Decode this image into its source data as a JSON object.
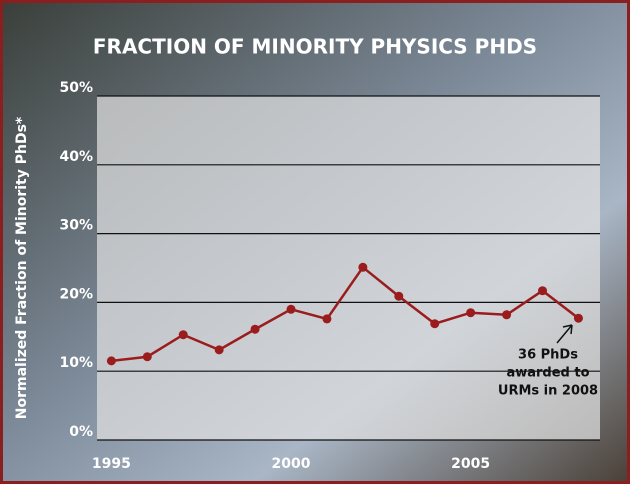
{
  "chart_data": {
    "type": "line",
    "title": "FRACTION OF MINORITY PHYSICS PHDS",
    "y_label": "Normalized Fraction of Minority PhDs*",
    "x": [
      1995,
      1996,
      1997,
      1998,
      1999,
      2000,
      2001,
      2002,
      2003,
      2004,
      2005,
      2006,
      2007,
      2008
    ],
    "series": [
      {
        "color": "#9b1c1c",
        "values": [
          11.5,
          12.1,
          15.3,
          13.1,
          16.1,
          19.0,
          17.6,
          25.1,
          20.9,
          16.9,
          18.5,
          18.2,
          21.7,
          17.7
        ]
      }
    ],
    "xlim": [
      1994.6,
      2008.6
    ],
    "xticks": [
      1995,
      2000,
      2005
    ],
    "ylim": [
      0,
      50
    ],
    "yticks": [
      {
        "value": 0,
        "label": "0%"
      },
      {
        "value": 10,
        "label": "10%"
      },
      {
        "value": 20,
        "label": "20%"
      },
      {
        "value": 30,
        "label": "30%"
      },
      {
        "value": 40,
        "label": "40%"
      },
      {
        "value": 50,
        "label": "50%"
      }
    ],
    "grid": true,
    "annotation": [
      "36 PhDs",
      "awarded to",
      "URMs in 2008"
    ]
  }
}
